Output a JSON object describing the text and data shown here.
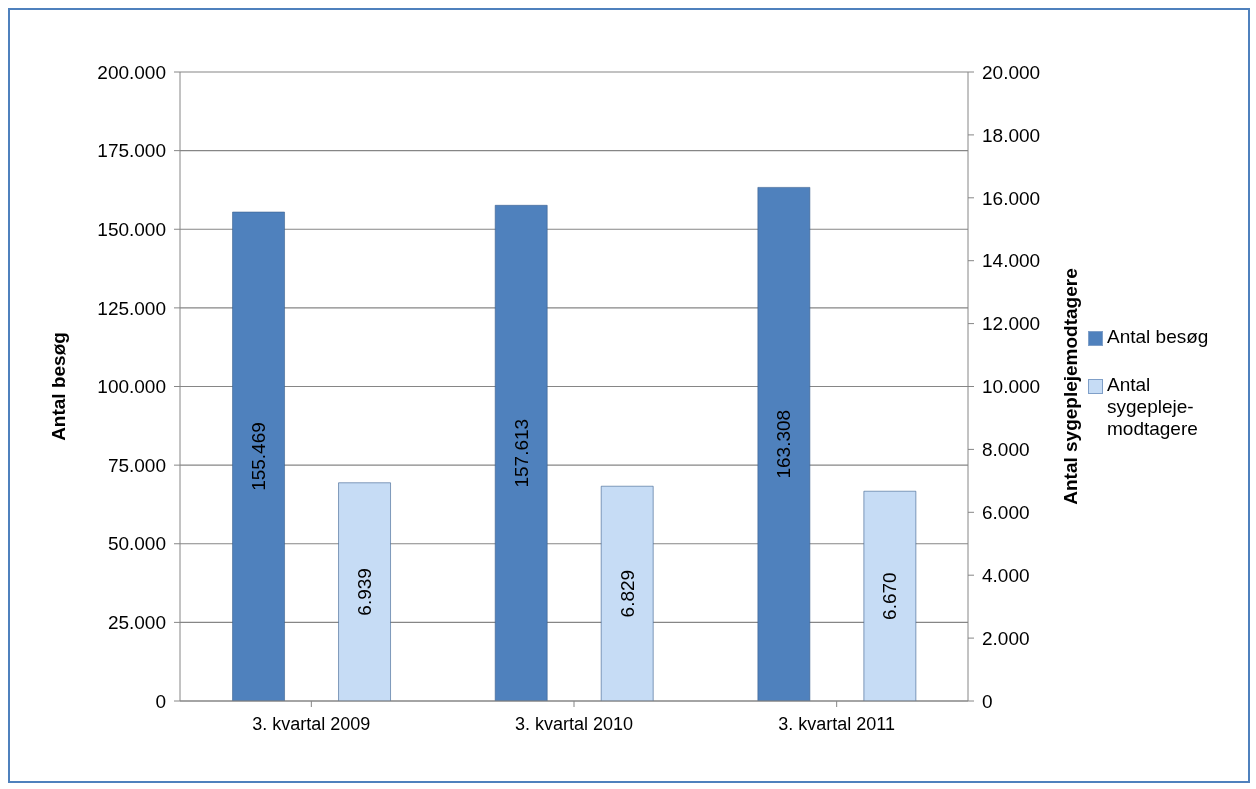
{
  "chart_data": {
    "type": "bar",
    "categories": [
      "3. kvartal 2009",
      "3. kvartal 2010",
      "3. kvartal 2011"
    ],
    "series": [
      {
        "name": "Antal besøg",
        "color": "#4f81bd",
        "values": [
          155469,
          157613,
          163308
        ],
        "value_labels": [
          "155.469",
          "157.613",
          "163.308"
        ]
      },
      {
        "name": "Antal sygepleje-modtagere",
        "color": "#c6dcf5",
        "axis": "y2",
        "values": [
          6939,
          6829,
          6670
        ],
        "value_labels": [
          "6.939",
          "6.829",
          "6.670"
        ]
      }
    ],
    "ylabel": "Antal besøg",
    "y2label": "Antal sygeplejemodtagere",
    "ylim": [
      0,
      200000
    ],
    "yticks": [
      0,
      {
        "value": 25000,
        "label": "25.000"
      },
      {
        "value": 50000,
        "label": "50.000"
      },
      {
        "value": 75000,
        "label": "75.000"
      },
      {
        "value": 100000,
        "label": "100.000"
      },
      {
        "value": 125000,
        "label": "125.000"
      },
      {
        "value": 150000,
        "label": "150.000"
      },
      {
        "value": 175000,
        "label": "175.000"
      },
      {
        "value": 200000,
        "label": "200.000"
      }
    ],
    "y2lim": [
      0,
      20000
    ],
    "y2ticks": [
      0,
      {
        "value": 2000,
        "label": "2.000"
      },
      {
        "value": 4000,
        "label": "4.000"
      },
      {
        "value": 6000,
        "label": "6.000"
      },
      {
        "value": 8000,
        "label": "8.000"
      },
      {
        "value": 10000,
        "label": "10.000"
      },
      {
        "value": 12000,
        "label": "12.000"
      },
      {
        "value": 14000,
        "label": "14.000"
      },
      {
        "value": 16000,
        "label": "16.000"
      },
      {
        "value": 18000,
        "label": "18.000"
      },
      {
        "value": 20000,
        "label": "20.000"
      }
    ],
    "grid": "y",
    "legend": "right"
  }
}
